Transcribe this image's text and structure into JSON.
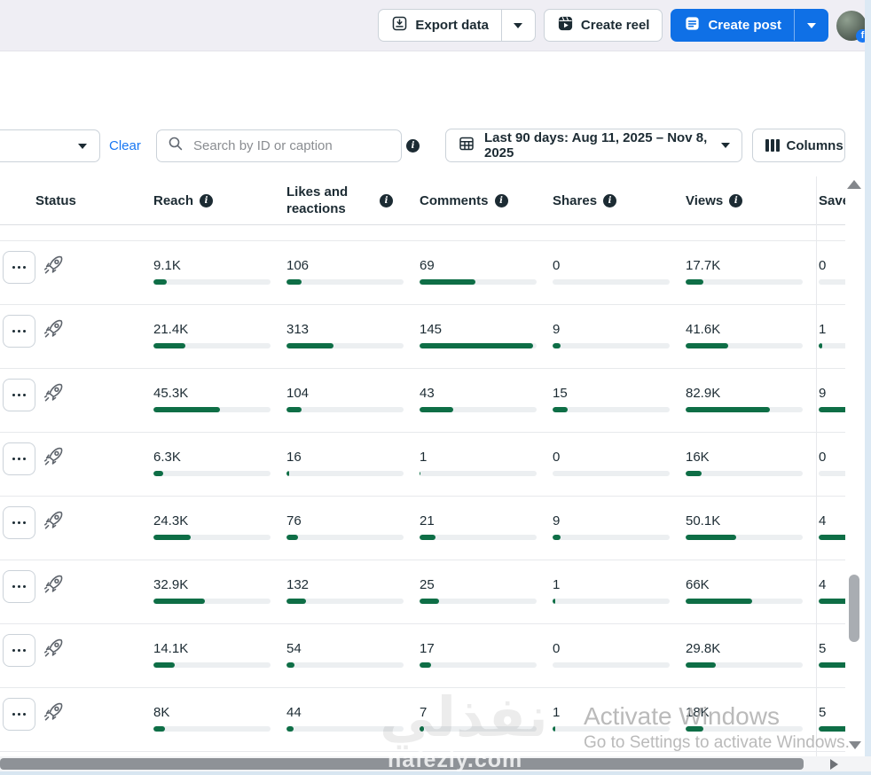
{
  "topbar": {
    "export": "Export data",
    "create_reel": "Create reel",
    "create_post": "Create post"
  },
  "filters": {
    "clear": "Clear",
    "search_placeholder": "Search by ID or caption",
    "date_range": "Last 90 days: Aug 11, 2025 – Nov 8, 2025",
    "columns": "Columns"
  },
  "table": {
    "headers": [
      {
        "label": "Status",
        "info": false
      },
      {
        "label": "Reach",
        "info": true
      },
      {
        "label": "Likes and reactions",
        "info": true
      },
      {
        "label": "Comments",
        "info": true
      },
      {
        "label": "Shares",
        "info": true
      },
      {
        "label": "Views",
        "info": true
      },
      {
        "label": "Saves",
        "info": false
      }
    ],
    "rows": [
      {
        "metrics": [
          {
            "value": "9.1K",
            "pct": 11
          },
          {
            "value": "106",
            "pct": 13
          },
          {
            "value": "69",
            "pct": 48
          },
          {
            "value": "0",
            "pct": 0
          },
          {
            "value": "17.7K",
            "pct": 15
          },
          {
            "value": "0",
            "pct": 0
          }
        ]
      },
      {
        "metrics": [
          {
            "value": "21.4K",
            "pct": 27
          },
          {
            "value": "313",
            "pct": 40
          },
          {
            "value": "145",
            "pct": 97
          },
          {
            "value": "9",
            "pct": 7
          },
          {
            "value": "41.6K",
            "pct": 36
          },
          {
            "value": "1",
            "pct": 3
          }
        ]
      },
      {
        "metrics": [
          {
            "value": "45.3K",
            "pct": 57
          },
          {
            "value": "104",
            "pct": 13
          },
          {
            "value": "43",
            "pct": 29
          },
          {
            "value": "15",
            "pct": 13
          },
          {
            "value": "82.9K",
            "pct": 72
          },
          {
            "value": "9",
            "pct": 80
          }
        ]
      },
      {
        "metrics": [
          {
            "value": "6.3K",
            "pct": 8
          },
          {
            "value": "16",
            "pct": 2
          },
          {
            "value": "1",
            "pct": 1
          },
          {
            "value": "0",
            "pct": 0
          },
          {
            "value": "16K",
            "pct": 14
          },
          {
            "value": "0",
            "pct": 0
          }
        ]
      },
      {
        "metrics": [
          {
            "value": "24.3K",
            "pct": 32
          },
          {
            "value": "76",
            "pct": 10
          },
          {
            "value": "21",
            "pct": 14
          },
          {
            "value": "9",
            "pct": 7
          },
          {
            "value": "50.1K",
            "pct": 43
          },
          {
            "value": "4",
            "pct": 40
          }
        ]
      },
      {
        "metrics": [
          {
            "value": "32.9K",
            "pct": 44
          },
          {
            "value": "132",
            "pct": 17
          },
          {
            "value": "25",
            "pct": 17
          },
          {
            "value": "1",
            "pct": 2
          },
          {
            "value": "66K",
            "pct": 57
          },
          {
            "value": "4",
            "pct": 40
          }
        ]
      },
      {
        "metrics": [
          {
            "value": "14.1K",
            "pct": 18
          },
          {
            "value": "54",
            "pct": 7
          },
          {
            "value": "17",
            "pct": 10
          },
          {
            "value": "0",
            "pct": 0
          },
          {
            "value": "29.8K",
            "pct": 26
          },
          {
            "value": "5",
            "pct": 50
          }
        ]
      },
      {
        "metrics": [
          {
            "value": "8K",
            "pct": 10
          },
          {
            "value": "44",
            "pct": 6
          },
          {
            "value": "7",
            "pct": 4
          },
          {
            "value": "1",
            "pct": 2
          },
          {
            "value": "18K",
            "pct": 15
          },
          {
            "value": "5",
            "pct": 50
          }
        ]
      }
    ]
  },
  "watermarks": {
    "activate_title": "Activate Windows",
    "activate_sub": "Go to Settings to activate Windows.",
    "site_arabic": "نفذلي",
    "site_latin": "nafezly.com"
  },
  "colors": {
    "accent_blue": "#0F70E6",
    "bar_green": "#0E6E46",
    "link_blue": "#1877F2",
    "topbar_bg": "#EFEEF4"
  }
}
